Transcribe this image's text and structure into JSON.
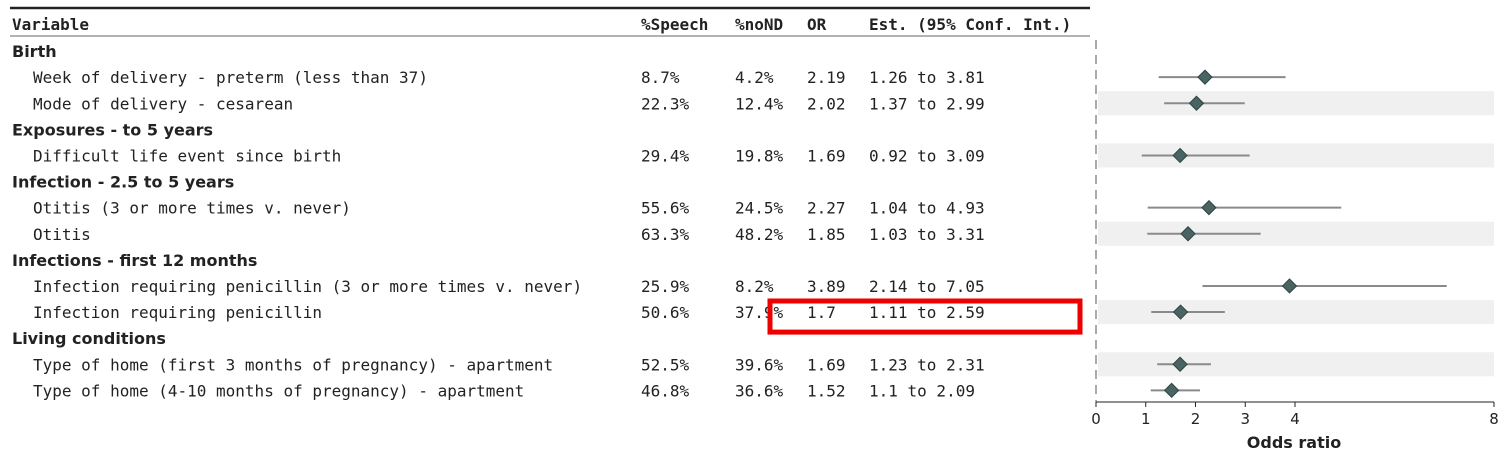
{
  "chart_data": {
    "type": "forest",
    "columns": [
      "Variable",
      "%Speech",
      "%noND",
      "OR",
      "Est. (95% Conf. Int.)"
    ],
    "rows": [
      {
        "kind": "group",
        "label": "Birth"
      },
      {
        "kind": "item",
        "label": "Week of delivery -  preterm (less than 37)",
        "speech": "8.7%",
        "nond": "4.2%",
        "or_text": "2.19",
        "ci_text": "1.26 to 3.81",
        "or": 2.19,
        "lo": 1.26,
        "hi": 3.81,
        "shaded": false
      },
      {
        "kind": "item",
        "label": "Mode of delivery - cesarean",
        "speech": "22.3%",
        "nond": "12.4%",
        "or_text": "2.02",
        "ci_text": "1.37 to 2.99",
        "or": 2.02,
        "lo": 1.37,
        "hi": 2.99,
        "shaded": true
      },
      {
        "kind": "group",
        "label": "Exposures - to 5 years"
      },
      {
        "kind": "item",
        "label": "Difficult life event since birth",
        "speech": "29.4%",
        "nond": "19.8%",
        "or_text": "1.69",
        "ci_text": "0.92 to 3.09",
        "or": 1.69,
        "lo": 0.92,
        "hi": 3.09,
        "shaded": true
      },
      {
        "kind": "group",
        "label": "Infection - 2.5 to 5 years"
      },
      {
        "kind": "item",
        "label": "Otitis (3 or more times v. never)",
        "speech": "55.6%",
        "nond": "24.5%",
        "or_text": "2.27",
        "ci_text": "1.04 to 4.93",
        "or": 2.27,
        "lo": 1.04,
        "hi": 4.93,
        "shaded": false
      },
      {
        "kind": "item",
        "label": "Otitis",
        "speech": "63.3%",
        "nond": "48.2%",
        "or_text": "1.85",
        "ci_text": "1.03 to 3.31",
        "or": 1.85,
        "lo": 1.03,
        "hi": 3.31,
        "shaded": true
      },
      {
        "kind": "group",
        "label": "Infections - first 12 months"
      },
      {
        "kind": "item",
        "label": "Infection requiring penicillin (3 or more times v. never)",
        "speech": "25.9%",
        "nond": "8.2%",
        "or_text": "3.89",
        "ci_text": "2.14 to 7.05",
        "or": 3.89,
        "lo": 2.14,
        "hi": 7.05,
        "shaded": false
      },
      {
        "kind": "item",
        "label": "Infection requiring penicillin",
        "speech": "50.6%",
        "nond": "37.9%",
        "or_text": "1.7",
        "ci_text": "1.11 to 2.59",
        "or": 1.7,
        "lo": 1.11,
        "hi": 2.59,
        "shaded": true,
        "highlighted": true
      },
      {
        "kind": "group",
        "label": "Living conditions"
      },
      {
        "kind": "item",
        "label": "Type of home (first 3 months of pregnancy) - apartment",
        "speech": "52.5%",
        "nond": "39.6%",
        "or_text": "1.69",
        "ci_text": "1.23 to 2.31",
        "or": 1.69,
        "lo": 1.23,
        "hi": 2.31,
        "shaded": true
      },
      {
        "kind": "item",
        "label": "Type of home (4-10 months of pregnancy) - apartment",
        "speech": "46.8%",
        "nond": "36.6%",
        "or_text": "1.52",
        "ci_text": "1.1 to 2.09",
        "or": 1.52,
        "lo": 1.1,
        "hi": 2.09,
        "shaded": false
      }
    ],
    "xlabel": "Odds ratio",
    "xticks": [
      0,
      1,
      2,
      3,
      4,
      8
    ],
    "xlim": [
      0,
      8
    ],
    "reference_line": 0,
    "grid": false,
    "colors": {
      "point": "#4a6464",
      "ci_line": "#8a8a8a",
      "row_shade": "#f0f0f0",
      "highlight_box": "#ee0000",
      "text": "#222222"
    }
  }
}
